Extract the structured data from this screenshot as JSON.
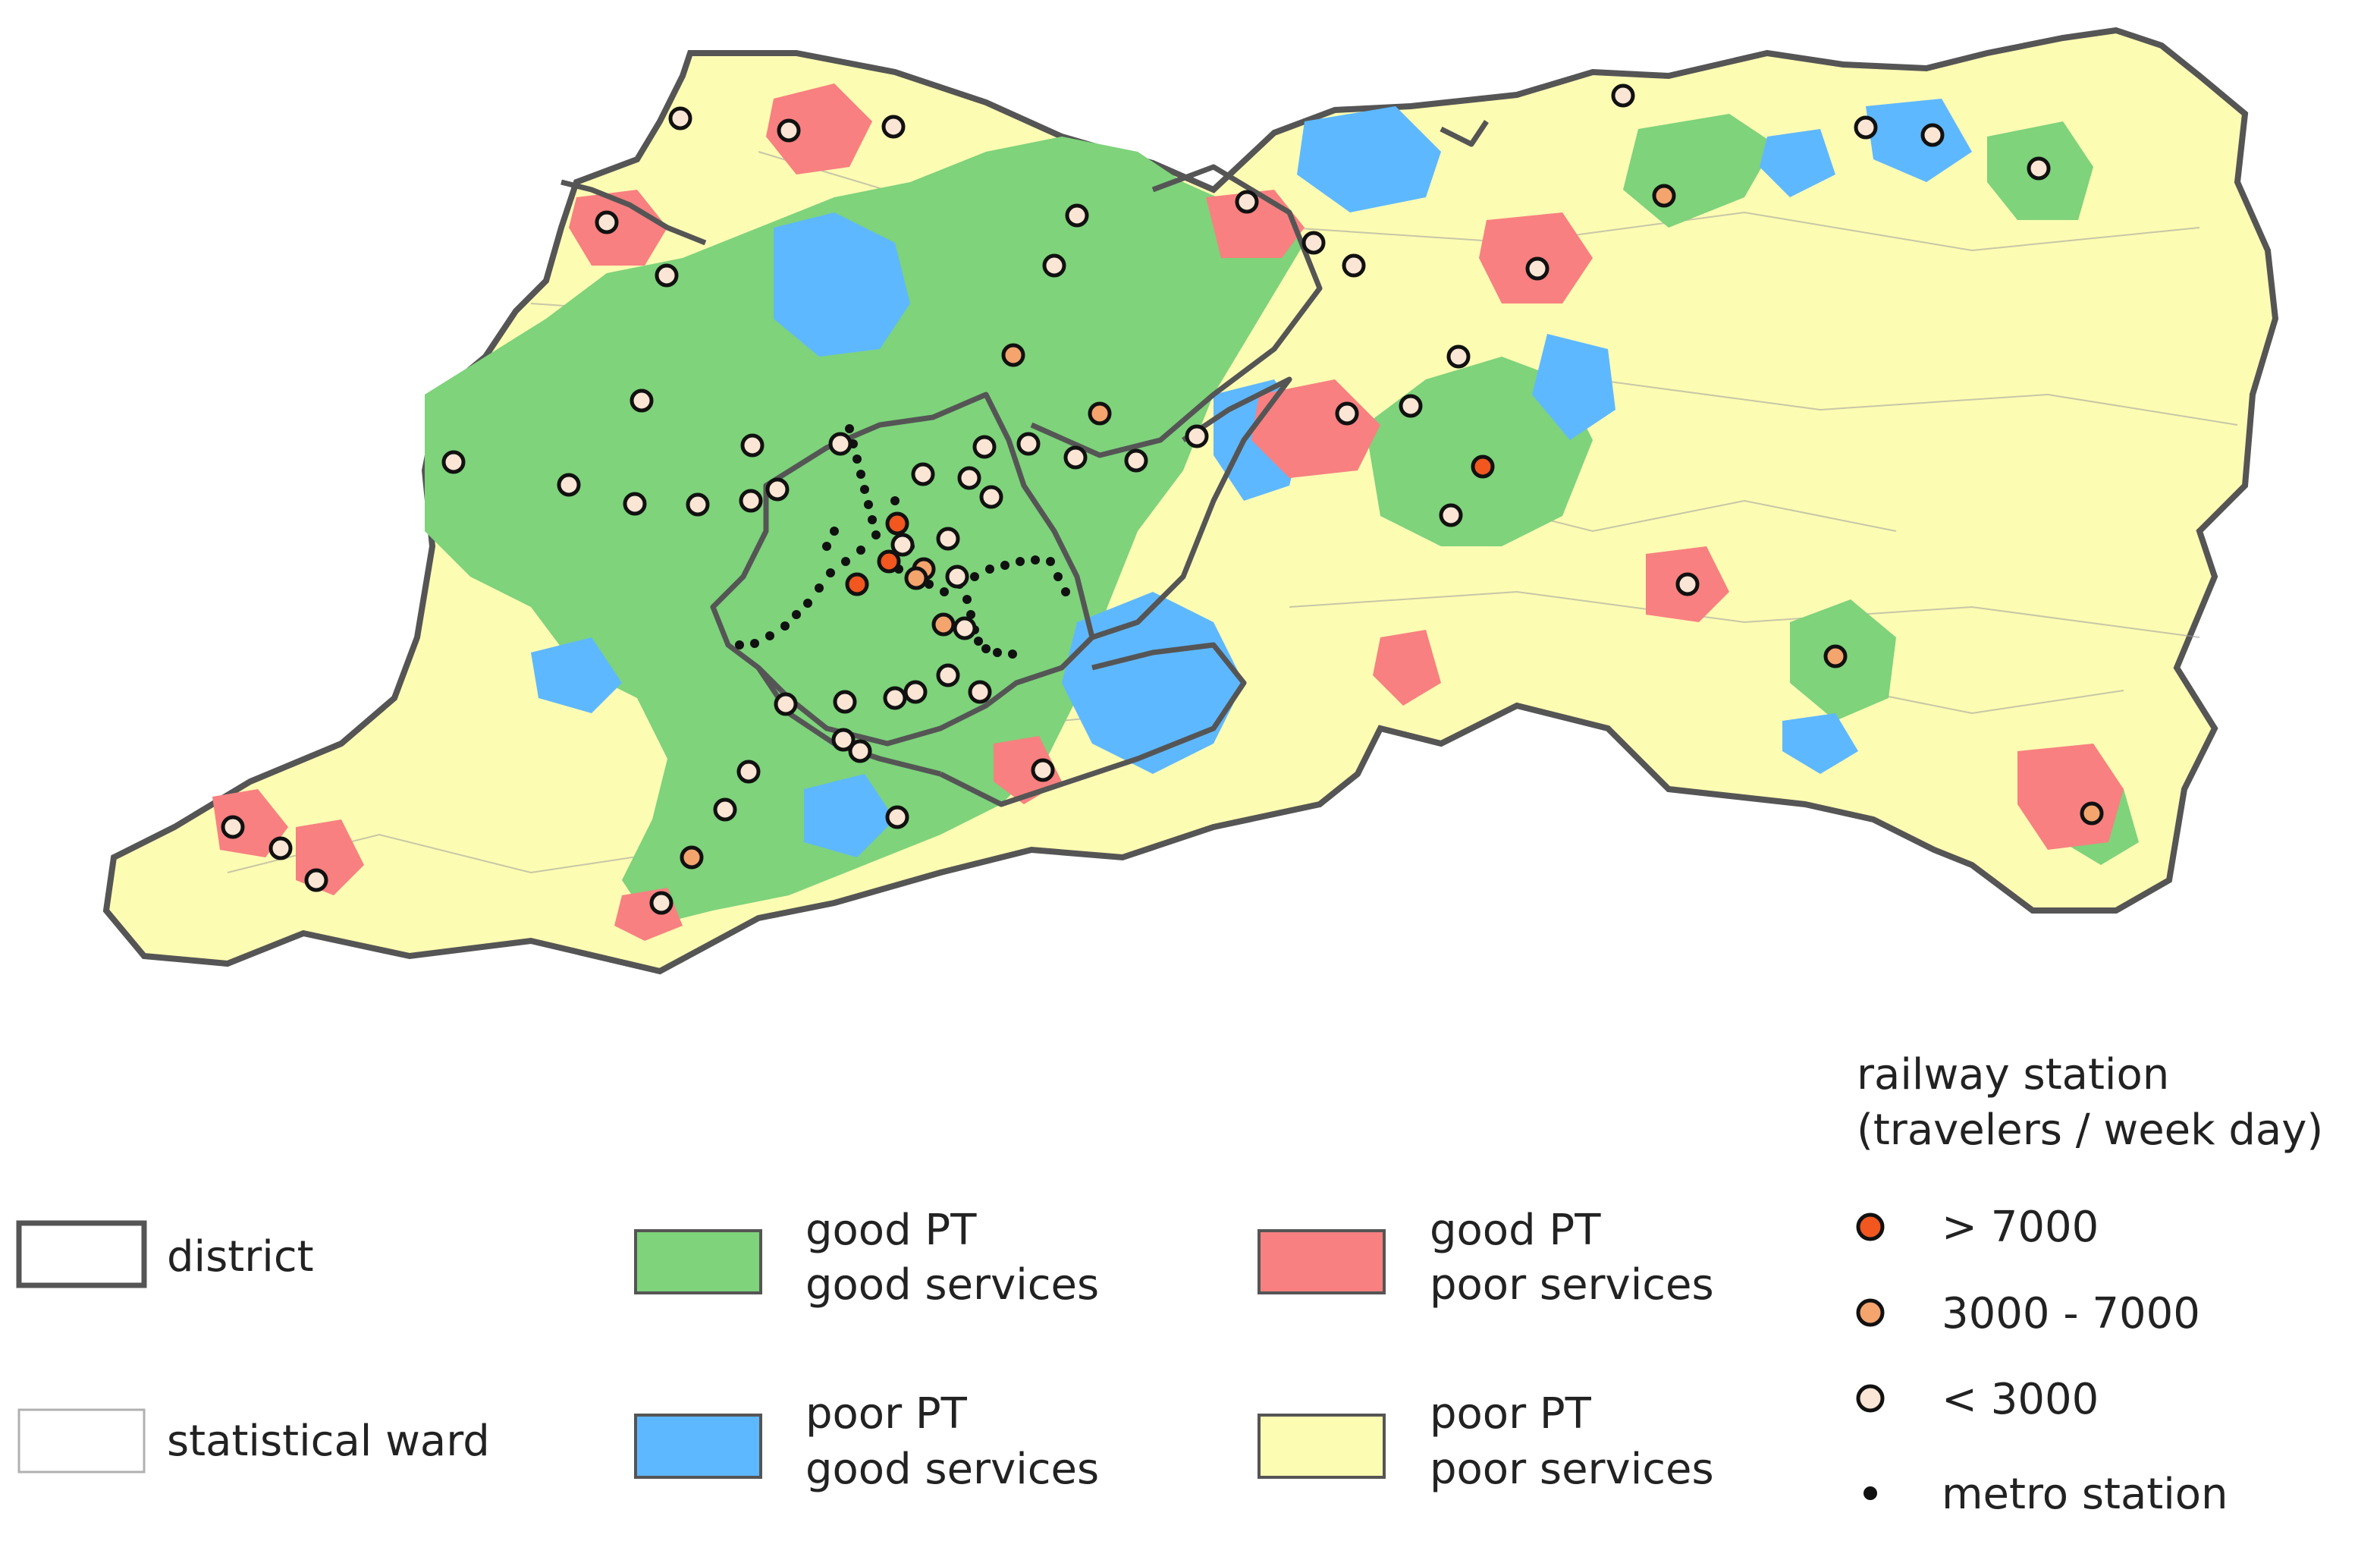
{
  "legend": {
    "district": "district",
    "statistical_ward": "statistical ward",
    "categories": [
      {
        "line1": "good PT",
        "line2": "good services",
        "color": "#7ed37b"
      },
      {
        "line1": "good PT",
        "line2": "poor services",
        "color": "#f88080"
      },
      {
        "line1": "poor PT",
        "line2": "good services",
        "color": "#5eb8ff"
      },
      {
        "line1": "poor PT",
        "line2": "poor services",
        "color": "#fdfcb3"
      }
    ],
    "stations_title_line1": "railway station",
    "stations_title_line2": "(travelers / week day)",
    "stations": [
      {
        "label": "> 7000",
        "color": "#f1571f"
      },
      {
        "label": "3000 - 7000",
        "color": "#f4a46d"
      },
      {
        "label": "< 3000",
        "color": "#fbe5d4"
      }
    ],
    "metro_label": "metro station"
  },
  "colors": {
    "district_border": "#555555",
    "ward_border": "#9a9a9a",
    "metro": "#111111"
  }
}
